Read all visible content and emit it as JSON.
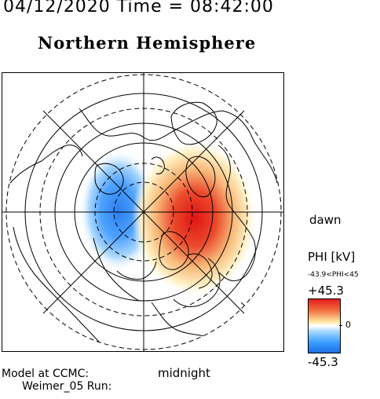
{
  "header": {
    "datetime": "04/12/2020 Time = 08:42:00",
    "title": "Northern Hemisphere"
  },
  "map": {
    "orientation_labels": {
      "dawn": "dawn",
      "midnight": "midnight"
    },
    "projection": "polar",
    "grid": {
      "meridians": 8,
      "latitude_circles_solid": 3,
      "latitude_circles_dashed": 3
    },
    "potential_cells": [
      {
        "sign": "negative",
        "color": "#1e78e6",
        "location": "pre-midnight / dusk side"
      },
      {
        "sign": "positive",
        "color": "#e01a1a",
        "location": "dawn side, high latitude"
      }
    ]
  },
  "colorbar": {
    "label": "PHI [kV]",
    "range_text": "-43.9<PHI<45",
    "max": "+45.3",
    "zero": "0",
    "min": "-45.3",
    "colors": {
      "max": "#e41e1e",
      "mid": "#ffffff",
      "min": "#1e6ee6"
    }
  },
  "footer": {
    "model_line1": "Model at CCMC:",
    "model_line2": "Weimer_05 Run:"
  }
}
